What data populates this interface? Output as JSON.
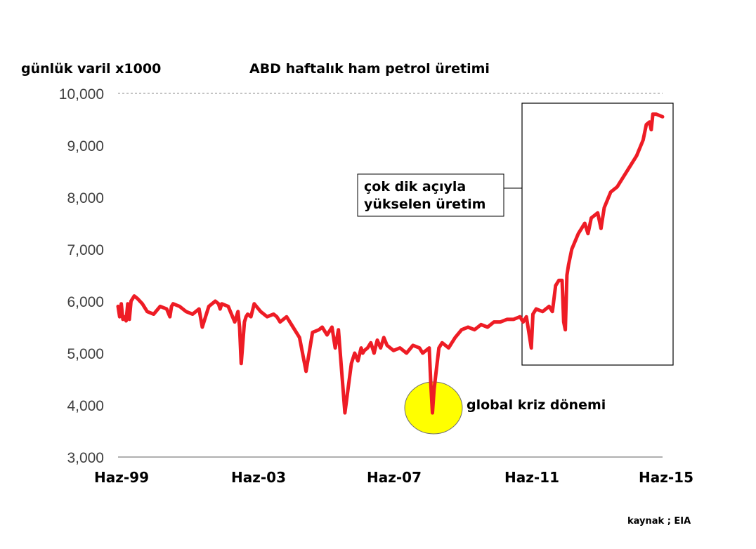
{
  "chart_data": {
    "type": "line",
    "title": "ABD haftalık ham petrol üretimi",
    "ylabel": "günlük varil x1000",
    "ylim": [
      3000,
      10000
    ],
    "yticks": [
      "3,000",
      "4,000",
      "5,000",
      "6,000",
      "7,000",
      "8,000",
      "9,000",
      "10,000"
    ],
    "xticks": [
      "Haz-99",
      "Haz-03",
      "Haz-07",
      "Haz-11",
      "Haz-15"
    ],
    "grid": "dashed line at 10,000 only",
    "series": [
      {
        "color": "#ee1c25",
        "x": [
          1999.0,
          1999.05,
          1999.1,
          1999.15,
          1999.2,
          1999.25,
          1999.3,
          1999.35,
          1999.4,
          1999.5,
          1999.6,
          1999.75,
          1999.9,
          2000.1,
          2000.3,
          2000.5,
          2000.6,
          2000.65,
          2000.7,
          2000.9,
          2001.1,
          2001.3,
          2001.5,
          2001.6,
          2001.8,
          2002.0,
          2002.1,
          2002.15,
          2002.2,
          2002.4,
          2002.6,
          2002.7,
          2002.75,
          2002.8,
          2002.85,
          2002.9,
          2002.95,
          2003.0,
          2003.1,
          2003.2,
          2003.4,
          2003.6,
          2003.8,
          2003.9,
          2004.0,
          2004.2,
          2004.4,
          2004.6,
          2004.8,
          2005.0,
          2005.2,
          2005.3,
          2005.45,
          2005.6,
          2005.7,
          2005.8,
          2006.0,
          2006.2,
          2006.3,
          2006.4,
          2006.5,
          2006.55,
          2006.6,
          2006.7,
          2006.8,
          2006.9,
          2007.0,
          2007.1,
          2007.2,
          2007.3,
          2007.5,
          2007.7,
          2007.9,
          2008.1,
          2008.3,
          2008.4,
          2008.5,
          2008.6,
          2008.65,
          2008.7,
          2008.75,
          2008.9,
          2009.0,
          2009.2,
          2009.4,
          2009.6,
          2009.8,
          2010.0,
          2010.2,
          2010.4,
          2010.6,
          2010.8,
          2011.0,
          2011.2,
          2011.4,
          2011.5,
          2011.6,
          2011.7,
          2011.75,
          2011.8,
          2011.9,
          2012.1,
          2012.3,
          2012.4,
          2012.5,
          2012.6,
          2012.7,
          2012.75,
          2012.8,
          2012.85,
          2012.9,
          2013.0,
          2013.2,
          2013.4,
          2013.5,
          2013.6,
          2013.8,
          2013.9,
          2014.0,
          2014.2,
          2014.4,
          2014.6,
          2014.8,
          2015.0,
          2015.2,
          2015.3,
          2015.4,
          2015.45,
          2015.5,
          2015.6,
          2015.8
        ],
        "values": [
          5900,
          5700,
          5950,
          5650,
          5700,
          5620,
          5950,
          5650,
          6000,
          6100,
          6050,
          5950,
          5800,
          5750,
          5900,
          5850,
          5700,
          5900,
          5950,
          5900,
          5800,
          5750,
          5850,
          5500,
          5900,
          6000,
          5950,
          5850,
          5950,
          5900,
          5600,
          5800,
          5500,
          4800,
          5200,
          5600,
          5700,
          5750,
          5700,
          5950,
          5800,
          5700,
          5750,
          5700,
          5600,
          5700,
          5500,
          5300,
          4650,
          5400,
          5450,
          5500,
          5350,
          5500,
          5100,
          5450,
          3850,
          4800,
          5000,
          4850,
          5100,
          5000,
          5050,
          5100,
          5200,
          5000,
          5250,
          5100,
          5300,
          5150,
          5050,
          5100,
          5000,
          5150,
          5100,
          5000,
          5050,
          5100,
          4400,
          3850,
          4300,
          5100,
          5200,
          5100,
          5300,
          5450,
          5500,
          5450,
          5550,
          5500,
          5600,
          5600,
          5650,
          5650,
          5700,
          5600,
          5700,
          5300,
          5100,
          5750,
          5850,
          5800,
          5900,
          5800,
          6300,
          6400,
          6400,
          5600,
          5450,
          6500,
          6700,
          7000,
          7300,
          7500,
          7300,
          7600,
          7700,
          7400,
          7800,
          8100,
          8200,
          8400,
          8600,
          8800,
          9100,
          9400,
          9450,
          9300,
          9600,
          9600,
          9550
        ]
      }
    ],
    "annotations": [
      {
        "text_lines": [
          "çok dik açıyla",
          "yükselen üretim"
        ]
      },
      {
        "text": "global kriz dönemi"
      }
    ]
  },
  "source": "kaynak ; EIA"
}
